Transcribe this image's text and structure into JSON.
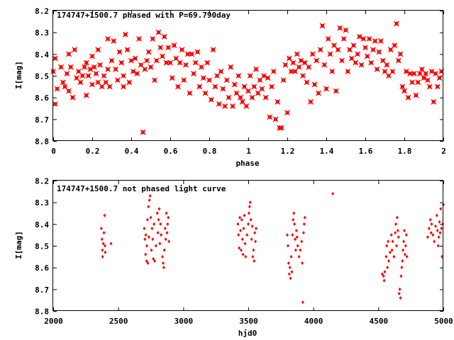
{
  "chart_data": [
    {
      "type": "scatter",
      "title": "174747+1500.7 phased with P=69.790day",
      "xlabel": "phase",
      "ylabel": "I[mag]",
      "xlim": [
        0,
        2
      ],
      "ylim": [
        8.2,
        8.8
      ],
      "y_inverted": true,
      "xticks": [
        "0",
        "0.2",
        "0.4",
        "0.6",
        "0.8",
        "1",
        "1.2",
        "1.4",
        "1.6",
        "1.8",
        "2"
      ],
      "yticks": [
        "8.2",
        "8.3",
        "8.4",
        "8.5",
        "8.6",
        "8.7",
        "8.8"
      ],
      "marker_color": "#ff0000",
      "marker": "filled-square-cross",
      "points": [
        [
          0.0,
          8.48
        ],
        [
          0.01,
          8.42
        ],
        [
          0.01,
          8.63
        ],
        [
          0.02,
          8.56
        ],
        [
          0.04,
          8.46
        ],
        [
          0.05,
          8.53
        ],
        [
          0.06,
          8.55
        ],
        [
          0.07,
          8.49
        ],
        [
          0.08,
          8.57
        ],
        [
          0.08,
          8.4
        ],
        [
          0.09,
          8.46
        ],
        [
          0.1,
          8.6
        ],
        [
          0.11,
          8.38
        ],
        [
          0.12,
          8.51
        ],
        [
          0.13,
          8.48
        ],
        [
          0.14,
          8.53
        ],
        [
          0.15,
          8.5
        ],
        [
          0.16,
          8.46
        ],
        [
          0.17,
          8.44
        ],
        [
          0.17,
          8.59
        ],
        [
          0.18,
          8.5
        ],
        [
          0.19,
          8.47
        ],
        [
          0.2,
          8.41
        ],
        [
          0.2,
          8.54
        ],
        [
          0.21,
          8.46
        ],
        [
          0.22,
          8.49
        ],
        [
          0.23,
          8.38
        ],
        [
          0.23,
          8.53
        ],
        [
          0.24,
          8.45
        ],
        [
          0.25,
          8.55
        ],
        [
          0.26,
          8.5
        ],
        [
          0.27,
          8.53
        ],
        [
          0.28,
          8.47
        ],
        [
          0.28,
          8.33
        ],
        [
          0.29,
          8.55
        ],
        [
          0.3,
          8.43
        ],
        [
          0.31,
          8.34
        ],
        [
          0.32,
          8.47
        ],
        [
          0.33,
          8.52
        ],
        [
          0.34,
          8.39
        ],
        [
          0.35,
          8.44
        ],
        [
          0.36,
          8.5
        ],
        [
          0.36,
          8.55
        ],
        [
          0.37,
          8.31
        ],
        [
          0.38,
          8.38
        ],
        [
          0.39,
          8.53
        ],
        [
          0.4,
          8.43
        ],
        [
          0.41,
          8.48
        ],
        [
          0.42,
          8.42
        ],
        [
          0.43,
          8.49
        ],
        [
          0.44,
          8.33
        ],
        [
          0.45,
          8.45
        ],
        [
          0.46,
          8.76
        ],
        [
          0.47,
          8.47
        ],
        [
          0.48,
          8.43
        ],
        [
          0.49,
          8.39
        ],
        [
          0.5,
          8.46
        ],
        [
          0.51,
          8.33
        ],
        [
          0.52,
          8.52
        ],
        [
          0.53,
          8.43
        ],
        [
          0.54,
          8.3
        ],
        [
          0.55,
          8.37
        ],
        [
          0.56,
          8.41
        ],
        [
          0.57,
          8.32
        ],
        [
          0.58,
          8.44
        ],
        [
          0.59,
          8.37
        ],
        [
          0.6,
          8.44
        ],
        [
          0.61,
          8.51
        ],
        [
          0.62,
          8.36
        ],
        [
          0.63,
          8.42
        ],
        [
          0.64,
          8.55
        ],
        [
          0.65,
          8.44
        ],
        [
          0.66,
          8.38
        ],
        [
          0.67,
          8.52
        ],
        [
          0.68,
          8.45
        ],
        [
          0.69,
          8.4
        ],
        [
          0.7,
          8.58
        ],
        [
          0.71,
          8.4
        ],
        [
          0.72,
          8.49
        ],
        [
          0.73,
          8.44
        ],
        [
          0.74,
          8.39
        ],
        [
          0.75,
          8.55
        ],
        [
          0.76,
          8.46
        ],
        [
          0.77,
          8.51
        ],
        [
          0.78,
          8.58
        ],
        [
          0.79,
          8.44
        ],
        [
          0.8,
          8.52
        ],
        [
          0.81,
          8.61
        ],
        [
          0.82,
          8.38
        ],
        [
          0.83,
          8.55
        ],
        [
          0.84,
          8.5
        ],
        [
          0.85,
          8.63
        ],
        [
          0.86,
          8.48
        ],
        [
          0.87,
          8.56
        ],
        [
          0.88,
          8.64
        ],
        [
          0.89,
          8.52
        ],
        [
          0.9,
          8.6
        ],
        [
          0.91,
          8.46
        ],
        [
          0.92,
          8.64
        ],
        [
          0.93,
          8.54
        ],
        [
          0.94,
          8.58
        ],
        [
          0.95,
          8.5
        ],
        [
          0.96,
          8.6
        ],
        [
          0.97,
          8.62
        ],
        [
          0.98,
          8.55
        ],
        [
          0.99,
          8.64
        ],
        [
          1.0,
          8.57
        ],
        [
          1.01,
          8.5
        ],
        [
          1.02,
          8.6
        ],
        [
          1.03,
          8.55
        ],
        [
          1.04,
          8.47
        ],
        [
          1.05,
          8.58
        ],
        [
          1.06,
          8.52
        ],
        [
          1.07,
          8.56
        ],
        [
          1.08,
          8.5
        ],
        [
          1.09,
          8.6
        ],
        [
          1.1,
          8.51
        ],
        [
          1.11,
          8.69
        ],
        [
          1.12,
          8.55
        ],
        [
          1.13,
          8.48
        ],
        [
          1.14,
          8.7
        ],
        [
          1.15,
          8.62
        ],
        [
          1.16,
          8.74
        ],
        [
          1.17,
          8.74
        ],
        [
          1.18,
          8.52
        ],
        [
          1.19,
          8.45
        ],
        [
          1.2,
          8.67
        ],
        [
          1.21,
          8.42
        ],
        [
          1.22,
          8.48
        ],
        [
          1.23,
          8.44
        ],
        [
          1.24,
          8.48
        ],
        [
          1.25,
          8.4
        ],
        [
          1.26,
          8.46
        ],
        [
          1.27,
          8.43
        ],
        [
          1.28,
          8.5
        ],
        [
          1.29,
          8.44
        ],
        [
          1.3,
          8.53
        ],
        [
          1.31,
          8.46
        ],
        [
          1.32,
          8.62
        ],
        [
          1.33,
          8.4
        ],
        [
          1.34,
          8.54
        ],
        [
          1.35,
          8.43
        ],
        [
          1.36,
          8.58
        ],
        [
          1.37,
          8.38
        ],
        [
          1.38,
          8.27
        ],
        [
          1.39,
          8.45
        ],
        [
          1.4,
          8.56
        ],
        [
          1.41,
          8.33
        ],
        [
          1.42,
          8.4
        ],
        [
          1.43,
          8.48
        ],
        [
          1.44,
          8.36
        ],
        [
          1.45,
          8.57
        ],
        [
          1.46,
          8.38
        ],
        [
          1.47,
          8.28
        ],
        [
          1.48,
          8.43
        ],
        [
          1.49,
          8.33
        ],
        [
          1.5,
          8.29
        ],
        [
          1.51,
          8.48
        ],
        [
          1.52,
          8.38
        ],
        [
          1.53,
          8.42
        ],
        [
          1.54,
          8.36
        ],
        [
          1.55,
          8.44
        ],
        [
          1.56,
          8.4
        ],
        [
          1.57,
          8.32
        ],
        [
          1.58,
          8.45
        ],
        [
          1.59,
          8.33
        ],
        [
          1.6,
          8.37
        ],
        [
          1.61,
          8.41
        ],
        [
          1.62,
          8.33
        ],
        [
          1.63,
          8.44
        ],
        [
          1.64,
          8.38
        ],
        [
          1.65,
          8.34
        ],
        [
          1.66,
          8.47
        ],
        [
          1.67,
          8.39
        ],
        [
          1.68,
          8.34
        ],
        [
          1.69,
          8.43
        ],
        [
          1.7,
          8.48
        ],
        [
          1.71,
          8.45
        ],
        [
          1.72,
          8.5
        ],
        [
          1.73,
          8.38
        ],
        [
          1.74,
          8.48
        ],
        [
          1.75,
          8.36
        ],
        [
          1.76,
          8.26
        ],
        [
          1.77,
          8.43
        ],
        [
          1.78,
          8.4
        ],
        [
          1.79,
          8.55
        ],
        [
          1.8,
          8.57
        ],
        [
          1.81,
          8.48
        ],
        [
          1.82,
          8.6
        ],
        [
          1.83,
          8.49
        ],
        [
          1.84,
          8.53
        ],
        [
          1.85,
          8.49
        ],
        [
          1.86,
          8.59
        ],
        [
          1.87,
          8.53
        ],
        [
          1.88,
          8.49
        ],
        [
          1.89,
          8.47
        ],
        [
          1.9,
          8.51
        ],
        [
          1.91,
          8.49
        ],
        [
          1.92,
          8.52
        ],
        [
          1.93,
          8.55
        ],
        [
          1.94,
          8.48
        ],
        [
          1.95,
          8.62
        ],
        [
          1.96,
          8.49
        ],
        [
          1.97,
          8.55
        ],
        [
          1.98,
          8.51
        ],
        [
          1.99,
          8.48
        ]
      ]
    },
    {
      "type": "scatter",
      "title": "174747+1500.7 not phased light curve",
      "xlabel": "hjd0",
      "ylabel": "I[mag]",
      "xlim": [
        2000,
        5000
      ],
      "ylim": [
        8.2,
        8.8
      ],
      "y_inverted": true,
      "xticks": [
        "2000",
        "2500",
        "3000",
        "3500",
        "4000",
        "4500",
        "5000"
      ],
      "yticks": [
        "8.2",
        "8.3",
        "8.4",
        "8.5",
        "8.6",
        "8.7",
        "8.8"
      ],
      "marker_color": "#ff0000",
      "marker": "small-diamond",
      "points": [
        [
          2370,
          8.42
        ],
        [
          2375,
          8.47
        ],
        [
          2378,
          8.52
        ],
        [
          2380,
          8.55
        ],
        [
          2385,
          8.49
        ],
        [
          2390,
          8.44
        ],
        [
          2395,
          8.36
        ],
        [
          2398,
          8.5
        ],
        [
          2400,
          8.53
        ],
        [
          2445,
          8.49
        ],
        [
          2700,
          8.42
        ],
        [
          2705,
          8.47
        ],
        [
          2710,
          8.54
        ],
        [
          2712,
          8.45
        ],
        [
          2718,
          8.57
        ],
        [
          2720,
          8.5
        ],
        [
          2725,
          8.38
        ],
        [
          2728,
          8.58
        ],
        [
          2732,
          8.32
        ],
        [
          2736,
          8.46
        ],
        [
          2740,
          8.29
        ],
        [
          2745,
          8.27
        ],
        [
          2750,
          8.37
        ],
        [
          2755,
          8.52
        ],
        [
          2760,
          8.42
        ],
        [
          2765,
          8.47
        ],
        [
          2770,
          8.56
        ],
        [
          2775,
          8.4
        ],
        [
          2780,
          8.57
        ],
        [
          2790,
          8.5
        ],
        [
          2800,
          8.35
        ],
        [
          2805,
          8.44
        ],
        [
          2810,
          8.38
        ],
        [
          2815,
          8.33
        ],
        [
          2820,
          8.49
        ],
        [
          2825,
          8.4
        ],
        [
          2830,
          8.45
        ],
        [
          2840,
          8.55
        ],
        [
          2845,
          8.58
        ],
        [
          2850,
          8.6
        ],
        [
          2855,
          8.52
        ],
        [
          2860,
          8.42
        ],
        [
          2865,
          8.47
        ],
        [
          2870,
          8.35
        ],
        [
          2875,
          8.44
        ],
        [
          2880,
          8.4
        ],
        [
          2885,
          8.37
        ],
        [
          2890,
          8.48
        ],
        [
          3420,
          8.4
        ],
        [
          3425,
          8.45
        ],
        [
          3430,
          8.51
        ],
        [
          3435,
          8.37
        ],
        [
          3440,
          8.43
        ],
        [
          3445,
          8.52
        ],
        [
          3450,
          8.38
        ],
        [
          3455,
          8.47
        ],
        [
          3460,
          8.54
        ],
        [
          3465,
          8.42
        ],
        [
          3470,
          8.36
        ],
        [
          3475,
          8.49
        ],
        [
          3480,
          8.55
        ],
        [
          3490,
          8.45
        ],
        [
          3500,
          8.4
        ],
        [
          3505,
          8.35
        ],
        [
          3510,
          8.32
        ],
        [
          3515,
          8.3
        ],
        [
          3520,
          8.38
        ],
        [
          3525,
          8.47
        ],
        [
          3530,
          8.41
        ],
        [
          3535,
          8.55
        ],
        [
          3540,
          8.52
        ],
        [
          3545,
          8.57
        ],
        [
          3550,
          8.44
        ],
        [
          3555,
          8.48
        ],
        [
          3560,
          8.42
        ],
        [
          3800,
          8.45
        ],
        [
          3805,
          8.5
        ],
        [
          3810,
          8.58
        ],
        [
          3815,
          8.63
        ],
        [
          3820,
          8.6
        ],
        [
          3825,
          8.65
        ],
        [
          3830,
          8.55
        ],
        [
          3835,
          8.62
        ],
        [
          3840,
          8.45
        ],
        [
          3845,
          8.38
        ],
        [
          3850,
          8.35
        ],
        [
          3855,
          8.4
        ],
        [
          3860,
          8.47
        ],
        [
          3865,
          8.52
        ],
        [
          3870,
          8.43
        ],
        [
          3875,
          8.46
        ],
        [
          3880,
          8.5
        ],
        [
          3890,
          8.55
        ],
        [
          3900,
          8.52
        ],
        [
          3910,
          8.48
        ],
        [
          3915,
          8.58
        ],
        [
          3920,
          8.76
        ],
        [
          3925,
          8.44
        ],
        [
          3930,
          8.4
        ],
        [
          3935,
          8.37
        ],
        [
          4150,
          8.26
        ],
        [
          4530,
          8.63
        ],
        [
          4540,
          8.64
        ],
        [
          4545,
          8.66
        ],
        [
          4550,
          8.62
        ],
        [
          4560,
          8.55
        ],
        [
          4565,
          8.5
        ],
        [
          4570,
          8.6
        ],
        [
          4575,
          8.48
        ],
        [
          4580,
          8.57
        ],
        [
          4590,
          8.53
        ],
        [
          4600,
          8.45
        ],
        [
          4605,
          8.52
        ],
        [
          4610,
          8.48
        ],
        [
          4620,
          8.55
        ],
        [
          4630,
          8.44
        ],
        [
          4635,
          8.4
        ],
        [
          4640,
          8.5
        ],
        [
          4645,
          8.37
        ],
        [
          4650,
          8.43
        ],
        [
          4655,
          8.46
        ],
        [
          4660,
          8.72
        ],
        [
          4665,
          8.7
        ],
        [
          4670,
          8.74
        ],
        [
          4675,
          8.64
        ],
        [
          4680,
          8.6
        ],
        [
          4685,
          8.57
        ],
        [
          4690,
          8.52
        ],
        [
          4695,
          8.48
        ],
        [
          4700,
          8.43
        ],
        [
          4705,
          8.54
        ],
        [
          4710,
          8.5
        ],
        [
          4715,
          8.45
        ],
        [
          4720,
          8.55
        ],
        [
          4880,
          8.46
        ],
        [
          4890,
          8.42
        ],
        [
          4900,
          8.38
        ],
        [
          4905,
          8.44
        ],
        [
          4910,
          8.4
        ],
        [
          4920,
          8.45
        ],
        [
          4930,
          8.48
        ],
        [
          4940,
          8.41
        ],
        [
          4950,
          8.36
        ],
        [
          4955,
          8.43
        ],
        [
          4960,
          8.5
        ],
        [
          4965,
          8.46
        ],
        [
          4970,
          8.39
        ],
        [
          4975,
          8.44
        ],
        [
          4980,
          8.33
        ],
        [
          4985,
          8.42
        ],
        [
          4990,
          8.55
        ],
        [
          4995,
          8.4
        ],
        [
          5000,
          8.31
        ]
      ]
    }
  ]
}
